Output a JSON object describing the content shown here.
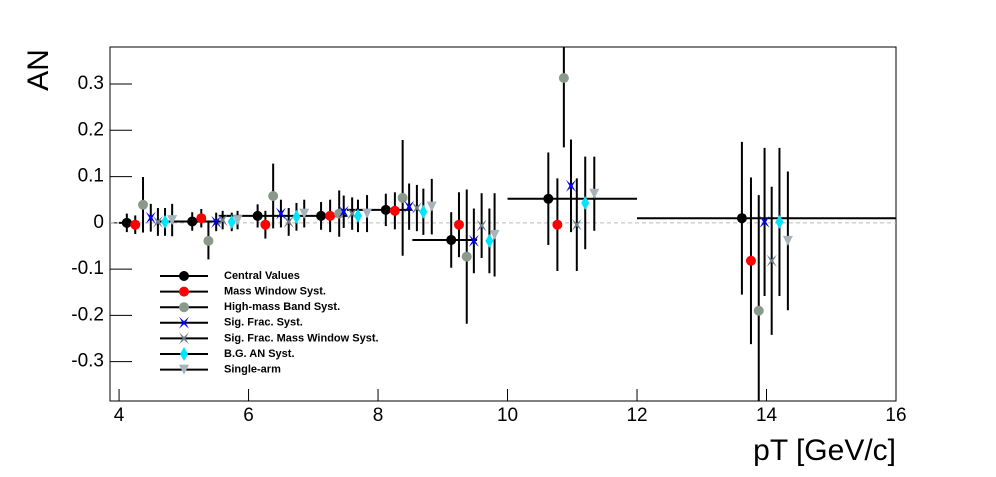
{
  "chart_data": {
    "type": "errorbar",
    "x_label": "pT [GeV/c]",
    "y_label": "AN",
    "xlim": [
      3.86,
      16
    ],
    "ylim": [
      -0.385,
      0.38
    ],
    "xticks": [
      4,
      6,
      8,
      10,
      12,
      14,
      16
    ],
    "yticks": [
      -0.3,
      -0.2,
      -0.1,
      0,
      0.1,
      0.2,
      0.3
    ],
    "series": [
      {
        "name": "Central Values",
        "color": "#000000",
        "marker": "circle",
        "x": [
          4.12,
          5.13,
          6.14,
          7.12,
          8.12,
          9.13,
          10.63,
          13.62
        ],
        "values": [
          0,
          0.003,
          0.015,
          0.015,
          0.028,
          -0.037,
          0.052,
          0.01
        ],
        "errors": [
          0.02,
          0.02,
          0.025,
          0.03,
          0.035,
          0.06,
          0.1,
          0.165
        ],
        "xerr_low": [
          0.12,
          0.5,
          0.6,
          0.6,
          0.6,
          0.6,
          0.63,
          1.62
        ],
        "xerr_high": [
          0.12,
          0.5,
          0.4,
          0.4,
          0.4,
          0.4,
          1.37,
          2.38
        ]
      },
      {
        "name": "Mass Window Syst.",
        "color": "#ff0000",
        "marker": "circle",
        "x": [
          4.25,
          5.27,
          6.26,
          7.26,
          8.26,
          9.25,
          10.77,
          13.76
        ],
        "values": [
          -0.004,
          0.01,
          -0.004,
          0.015,
          0.026,
          -0.004,
          -0.004,
          -0.082
        ],
        "errors": [
          0.02,
          0.02,
          0.03,
          0.035,
          0.04,
          0.07,
          0.1,
          0.18
        ]
      },
      {
        "name": "High-mass Band Syst.",
        "color": "#8a9a8a",
        "marker": "circle",
        "x": [
          4.37,
          5.38,
          6.38,
          7.4,
          8.38,
          9.37,
          10.87,
          13.88
        ],
        "values": [
          0.039,
          -0.039,
          0.058,
          0.02,
          0.054,
          -0.073,
          0.313,
          -0.19
        ],
        "errors": [
          0.06,
          0.04,
          0.07,
          0.05,
          0.125,
          0.145,
          0.15,
          0.25
        ]
      },
      {
        "name": "Sig. Frac. Syst.",
        "color": "#0000ff",
        "marker": "star",
        "x": [
          4.49,
          5.5,
          6.5,
          7.47,
          8.48,
          9.48,
          10.98,
          13.97
        ],
        "values": [
          0.011,
          0.002,
          0.02,
          0.024,
          0.035,
          -0.039,
          0.08,
          0.002
        ],
        "errors": [
          0.03,
          0.02,
          0.03,
          0.035,
          0.05,
          0.07,
          0.1,
          0.16
        ]
      },
      {
        "name": "Sig. Frac. Mass Window Syst.",
        "color": "#6f7f88",
        "marker": "star",
        "x": [
          4.6,
          5.6,
          6.62,
          7.6,
          8.6,
          9.6,
          11.07,
          14.08
        ],
        "values": [
          0.002,
          0.006,
          0.002,
          0.02,
          0.032,
          -0.006,
          -0.004,
          -0.082
        ],
        "errors": [
          0.03,
          0.02,
          0.03,
          0.035,
          0.05,
          0.07,
          0.1,
          0.16
        ]
      },
      {
        "name": "B.G. AN Syst.",
        "color": "#00e5ff",
        "marker": "diamond",
        "x": [
          4.71,
          5.74,
          6.74,
          7.69,
          8.7,
          9.72,
          11.2,
          14.2
        ],
        "values": [
          0.002,
          0.002,
          0.013,
          0.015,
          0.024,
          -0.039,
          0.043,
          0.002
        ],
        "errors": [
          0.03,
          0.02,
          0.03,
          0.035,
          0.05,
          0.07,
          0.1,
          0.16
        ]
      },
      {
        "name": "Single-arm",
        "color": "#a8b4bc",
        "marker": "triangle",
        "x": [
          4.82,
          5.83,
          6.86,
          7.83,
          8.83,
          9.8,
          11.34,
          14.33
        ],
        "values": [
          0.006,
          0.006,
          0.02,
          0.02,
          0.035,
          -0.026,
          0.063,
          -0.039
        ],
        "errors": [
          0.035,
          0.02,
          0.03,
          0.04,
          0.06,
          0.09,
          0.08,
          0.15
        ]
      }
    ]
  }
}
